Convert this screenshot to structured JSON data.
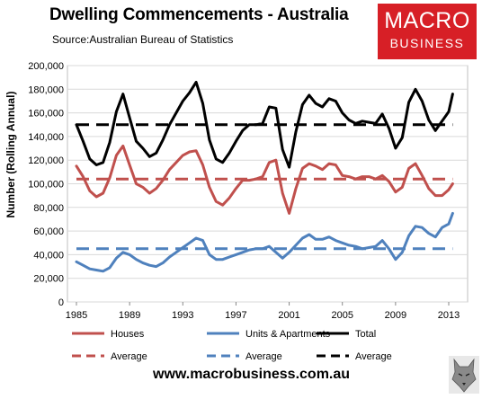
{
  "header": {
    "title": "Dwelling Commencements - Australia",
    "subtitle": "Source:Australian Bureau of Statistics"
  },
  "logo": {
    "line1": "MACRO",
    "line2": "BUSINESS"
  },
  "footer": {
    "url": "www.macrobusiness.com.au"
  },
  "colors": {
    "houses": "#c0504d",
    "units": "#4f81bd",
    "total": "#000000"
  },
  "chart_data": {
    "type": "line",
    "ylabel": "Number (Rolling Annual)",
    "xlabel": "",
    "ylim": [
      0,
      200000
    ],
    "xlim": [
      1985,
      2013.5
    ],
    "yticks": [
      0,
      20000,
      40000,
      60000,
      80000,
      100000,
      120000,
      140000,
      160000,
      180000,
      200000
    ],
    "ytick_labels": [
      "0",
      "20,000",
      "40,000",
      "60,000",
      "80,000",
      "100,000",
      "120,000",
      "140,000",
      "160,000",
      "180,000",
      "200,000"
    ],
    "xticks": [
      1985,
      1989,
      1993,
      1997,
      2001,
      2005,
      2009,
      2013
    ],
    "xtick_labels": [
      "1985",
      "1989",
      "1993",
      "1997",
      "2001",
      "2005",
      "2009",
      "2013"
    ],
    "grid": "horizontal",
    "legend_position": "bottom",
    "series": [
      {
        "name": "Houses",
        "color": "#c0504d",
        "dash": false,
        "x": [
          1985,
          1985.5,
          1986,
          1986.5,
          1987,
          1987.5,
          1988,
          1988.5,
          1989,
          1989.5,
          1990,
          1990.5,
          1991,
          1991.5,
          1992,
          1992.5,
          1993,
          1993.5,
          1994,
          1994.5,
          1995,
          1995.5,
          1996,
          1996.5,
          1997,
          1997.5,
          1998,
          1998.5,
          1999,
          1999.5,
          2000,
          2000.5,
          2001,
          2001.5,
          2002,
          2002.5,
          2003,
          2003.5,
          2004,
          2004.5,
          2005,
          2005.5,
          2006,
          2006.5,
          2007,
          2007.5,
          2008,
          2008.5,
          2009,
          2009.5,
          2010,
          2010.5,
          2011,
          2011.5,
          2012,
          2012.5,
          2013,
          2013.3
        ],
        "y": [
          115000,
          106000,
          94000,
          89000,
          92000,
          105000,
          124000,
          132000,
          116000,
          100000,
          97000,
          92000,
          96000,
          103000,
          112000,
          118000,
          124000,
          127000,
          128000,
          116000,
          97000,
          85000,
          82000,
          88000,
          96000,
          103000,
          103000,
          104000,
          106000,
          118000,
          120000,
          92000,
          75000,
          96000,
          113000,
          117000,
          115000,
          112000,
          117000,
          116000,
          107000,
          106000,
          104000,
          106000,
          106000,
          104000,
          107000,
          102000,
          93000,
          97000,
          113000,
          117000,
          107000,
          96000,
          90000,
          90000,
          95000,
          100000
        ]
      },
      {
        "name": "Units & Apartments",
        "color": "#4f81bd",
        "dash": false,
        "x": [
          1985,
          1985.5,
          1986,
          1986.5,
          1987,
          1987.5,
          1988,
          1988.5,
          1989,
          1989.5,
          1990,
          1990.5,
          1991,
          1991.5,
          1992,
          1992.5,
          1993,
          1993.5,
          1994,
          1994.5,
          1995,
          1995.5,
          1996,
          1996.5,
          1997,
          1997.5,
          1998,
          1998.5,
          1999,
          1999.5,
          2000,
          2000.5,
          2001,
          2001.5,
          2002,
          2002.5,
          2003,
          2003.5,
          2004,
          2004.5,
          2005,
          2005.5,
          2006,
          2006.5,
          2007,
          2007.5,
          2008,
          2008.5,
          2009,
          2009.5,
          2010,
          2010.5,
          2011,
          2011.5,
          2012,
          2012.5,
          2013,
          2013.3
        ],
        "y": [
          34000,
          31000,
          28000,
          27000,
          26000,
          29000,
          37000,
          42000,
          40000,
          36000,
          33000,
          31000,
          30000,
          33000,
          38000,
          42000,
          46000,
          50000,
          54000,
          52000,
          40000,
          36000,
          36000,
          38000,
          40000,
          42000,
          44000,
          45000,
          45000,
          47000,
          42000,
          37000,
          42000,
          48000,
          54000,
          57000,
          53000,
          53000,
          55000,
          52000,
          50000,
          48000,
          47000,
          45000,
          46000,
          47000,
          52000,
          45000,
          36000,
          42000,
          56000,
          64000,
          63000,
          58000,
          55000,
          63000,
          66000,
          75000
        ]
      },
      {
        "name": "Total",
        "color": "#000000",
        "dash": false,
        "x": [
          1985,
          1985.5,
          1986,
          1986.5,
          1987,
          1987.5,
          1988,
          1988.5,
          1989,
          1989.5,
          1990,
          1990.5,
          1991,
          1991.5,
          1992,
          1992.5,
          1993,
          1993.5,
          1994,
          1994.5,
          1995,
          1995.5,
          1996,
          1996.5,
          1997,
          1997.5,
          1998,
          1998.5,
          1999,
          1999.5,
          2000,
          2000.5,
          2001,
          2001.5,
          2002,
          2002.5,
          2003,
          2003.5,
          2004,
          2004.5,
          2005,
          2005.5,
          2006,
          2006.5,
          2007,
          2007.5,
          2008,
          2008.5,
          2009,
          2009.5,
          2010,
          2010.5,
          2011,
          2011.5,
          2012,
          2012.5,
          2013,
          2013.3
        ],
        "y": [
          150000,
          136000,
          121000,
          116000,
          118000,
          135000,
          161000,
          176000,
          156000,
          136000,
          130000,
          123000,
          126000,
          137000,
          150000,
          160000,
          170000,
          177000,
          186000,
          168000,
          137000,
          121000,
          118000,
          126000,
          136000,
          145000,
          150000,
          150000,
          151000,
          165000,
          164000,
          129000,
          114000,
          144000,
          167000,
          175000,
          168000,
          165000,
          172000,
          170000,
          160000,
          154000,
          151000,
          153000,
          152000,
          151000,
          159000,
          147000,
          130000,
          139000,
          169000,
          180000,
          170000,
          154000,
          145000,
          153000,
          161000,
          176000
        ]
      },
      {
        "name": "Average",
        "color": "#c0504d",
        "dash": true,
        "x": [
          1985,
          2013.3
        ],
        "y": [
          104000,
          104000
        ]
      },
      {
        "name": "Average",
        "color": "#4f81bd",
        "dash": true,
        "x": [
          1985,
          2013.3
        ],
        "y": [
          45000,
          45000
        ]
      },
      {
        "name": "Average",
        "color": "#000000",
        "dash": true,
        "x": [
          1985,
          2013.3
        ],
        "y": [
          150000,
          150000
        ]
      }
    ]
  }
}
